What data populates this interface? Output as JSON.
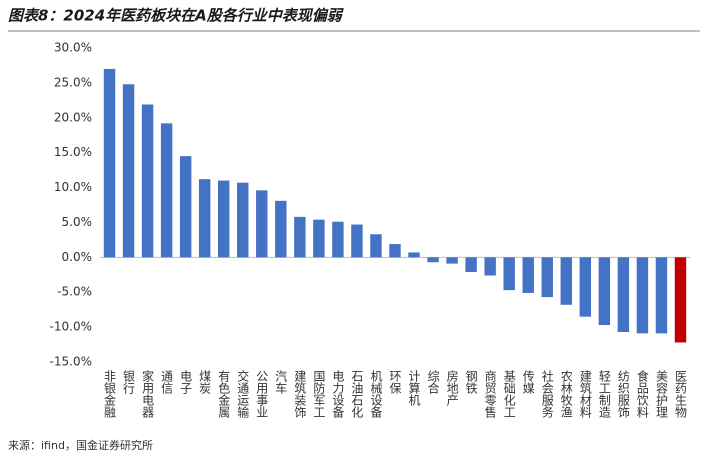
{
  "chart_data": {
    "type": "bar",
    "title": "图表8：2024年医药板块在A股各行业中表现偏弱",
    "source": "来源：ifind，国金证券研究所",
    "categories": [
      "非银金融",
      "银行",
      "家用电器",
      "通信",
      "电子",
      "煤炭",
      "有色金属",
      "交通运输",
      "公用事业",
      "汽车",
      "建筑装饰",
      "国防军工",
      "电力设备",
      "石油石化",
      "机械设备",
      "环保",
      "计算机",
      "综合",
      "房地产",
      "钢铁",
      "商贸零售",
      "基础化工",
      "传媒",
      "社会服务",
      "农林牧渔",
      "建筑材料",
      "轻工制造",
      "纺织服饰",
      "食品饮料",
      "美容护理",
      "医药生物"
    ],
    "values": [
      27.0,
      24.8,
      21.9,
      19.2,
      14.5,
      11.2,
      11.0,
      10.7,
      9.6,
      8.1,
      5.8,
      5.4,
      5.1,
      4.7,
      3.3,
      1.9,
      0.7,
      -0.7,
      -0.9,
      -2.1,
      -2.6,
      -4.7,
      -5.1,
      -5.7,
      -6.8,
      -8.5,
      -9.7,
      -10.7,
      -10.9,
      -10.9,
      -12.2
    ],
    "colors": [
      "#4472c4",
      "#4472c4",
      "#4472c4",
      "#4472c4",
      "#4472c4",
      "#4472c4",
      "#4472c4",
      "#4472c4",
      "#4472c4",
      "#4472c4",
      "#4472c4",
      "#4472c4",
      "#4472c4",
      "#4472c4",
      "#4472c4",
      "#4472c4",
      "#4472c4",
      "#4472c4",
      "#4472c4",
      "#4472c4",
      "#4472c4",
      "#4472c4",
      "#4472c4",
      "#4472c4",
      "#4472c4",
      "#4472c4",
      "#4472c4",
      "#4472c4",
      "#4472c4",
      "#4472c4",
      "#c00000"
    ],
    "ylim": [
      -15,
      30
    ],
    "yticks": [
      {
        "value": 30,
        "label": "30.0%"
      },
      {
        "value": 25,
        "label": "25.0%"
      },
      {
        "value": 20,
        "label": "20.0%"
      },
      {
        "value": 15,
        "label": "15.0%"
      },
      {
        "value": 10,
        "label": "10.0%"
      },
      {
        "value": 5,
        "label": "5.0%"
      },
      {
        "value": 0,
        "label": "0.0%"
      },
      {
        "value": -5,
        "label": "-5.0%"
      },
      {
        "value": -10,
        "label": "-10.0%"
      },
      {
        "value": -15,
        "label": "-15.0%"
      }
    ],
    "grid": false
  }
}
